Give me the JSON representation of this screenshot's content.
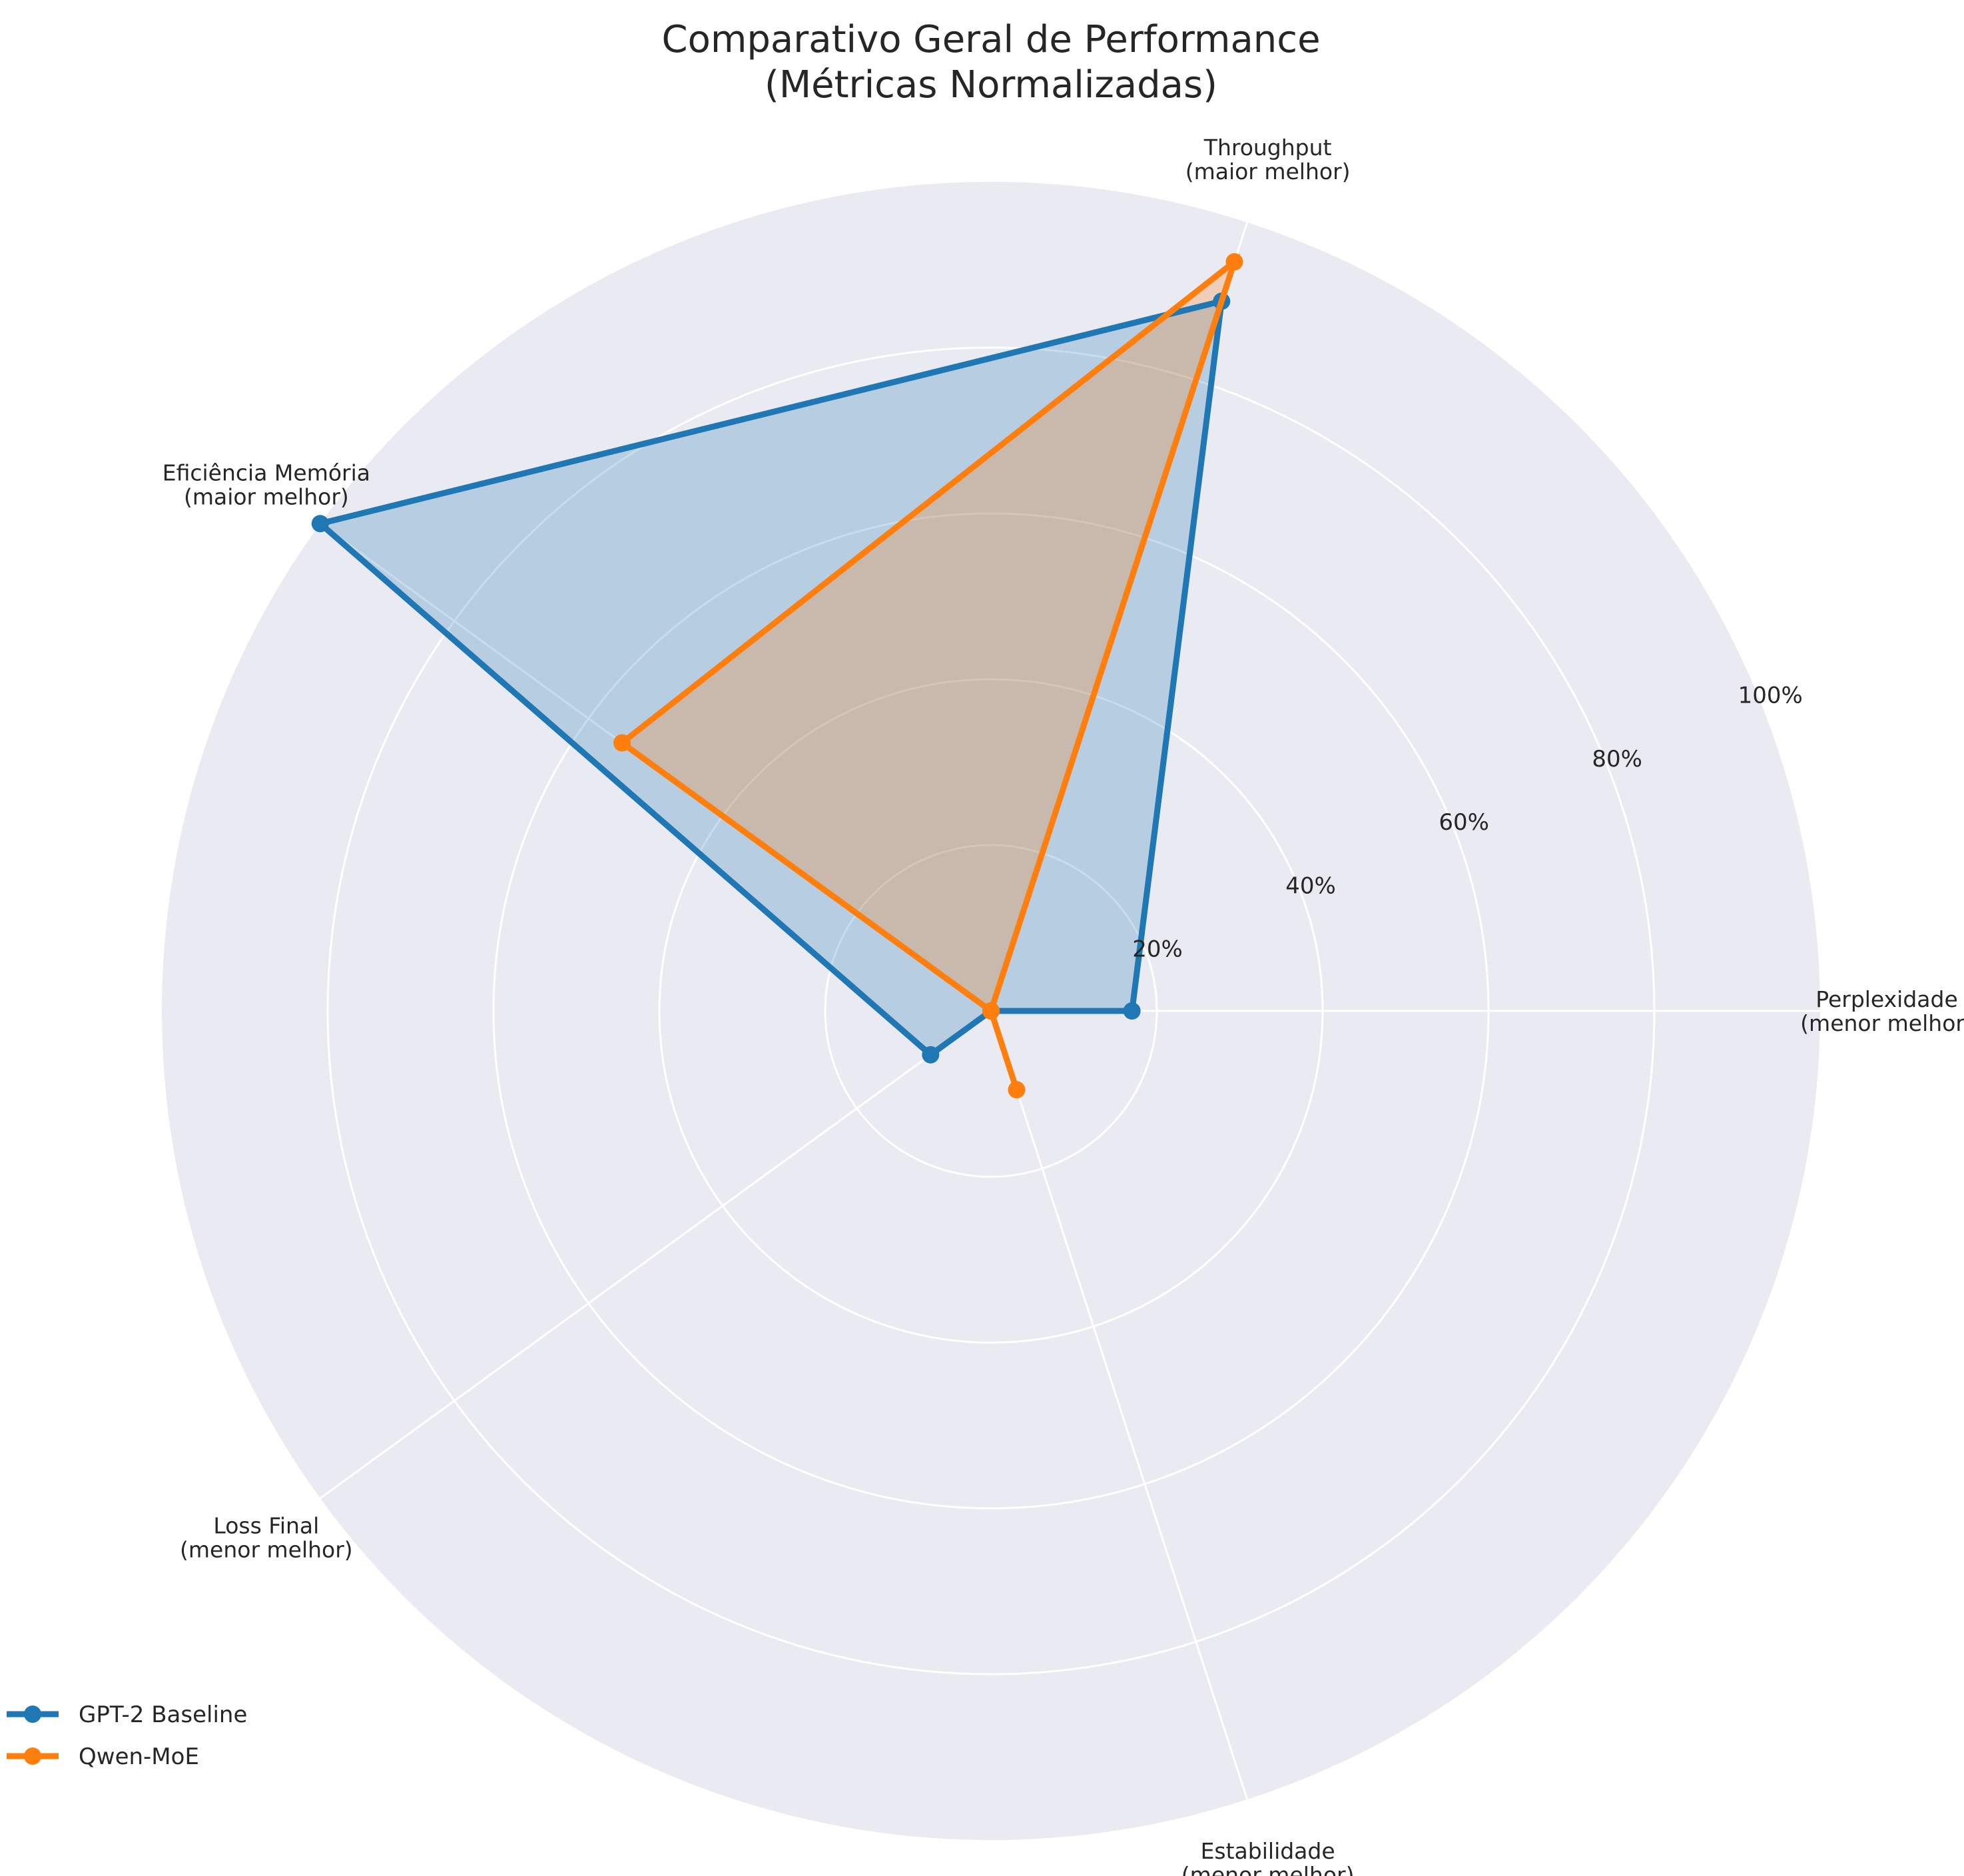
{
  "chart_data": {
    "type": "radar",
    "title_lines": [
      "Comparativo Geral de Performance",
      "(Métricas Normalizadas)"
    ],
    "axes": [
      {
        "lines": [
          "Perplexidade",
          "(menor melhor)"
        ]
      },
      {
        "lines": [
          "Throughput",
          "(maior melhor)"
        ]
      },
      {
        "lines": [
          "Eficiência Memória",
          "(maior melhor)"
        ]
      },
      {
        "lines": [
          "Loss Final",
          "(menor melhor)"
        ]
      },
      {
        "lines": [
          "Estabilidade",
          "(menor melhor)"
        ]
      }
    ],
    "rlim": [
      0,
      1.0
    ],
    "rticks": [
      0.2,
      0.4,
      0.6,
      0.8,
      1.0
    ],
    "rtick_labels": [
      "20%",
      "40%",
      "60%",
      "80%",
      "100%"
    ],
    "grid": true,
    "legend_position": "bottom-left",
    "series": [
      {
        "name": "GPT-2 Baseline",
        "color": "#1f77b4",
        "values": [
          0.17,
          0.9,
          1.0,
          0.09,
          0.0
        ]
      },
      {
        "name": "Qwen-MoE",
        "color": "#ff7f0e",
        "values": [
          0.0,
          0.95,
          0.55,
          0.0,
          0.1
        ]
      }
    ]
  },
  "style": {
    "plot_background": "#eaeaf2",
    "grid_color": "#ffffff",
    "text_color": "#262626"
  }
}
